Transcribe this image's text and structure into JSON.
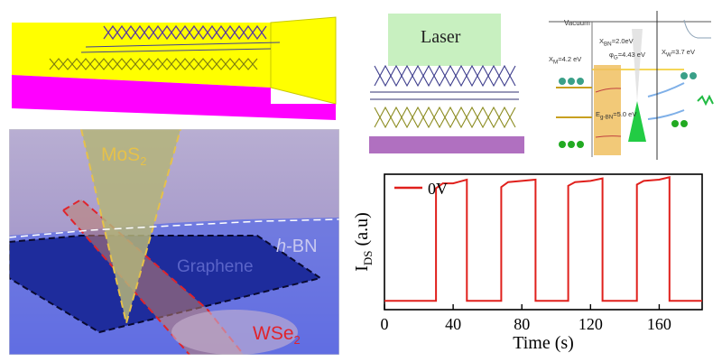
{
  "micrograph": {
    "labels": {
      "mos2": "MoS",
      "mos2_sub": "2",
      "hbn_italic": "h",
      "hbn_rest": "-BN",
      "graphene": "Graphene",
      "wse2": "WSe",
      "wse2_sub": "2"
    }
  },
  "schematic": {
    "laser_label": "Laser"
  },
  "band_diagram": {
    "vacuum": "Vacuum",
    "chi_m_main": "X",
    "chi_m_sub": "M",
    "chi_m_val": "=4.2 eV",
    "chi_bn_main": "X",
    "chi_bn_sub": "BN",
    "chi_bn_val": "=2.0eV",
    "phi_g_main": "φ",
    "phi_g_sub": "G",
    "phi_g_val": "=4.43 eV",
    "eg_main": "E",
    "eg_sub": "g-BN",
    "eg_val": "=5.0 eV",
    "chi_w_main": "X",
    "chi_w_sub": "W",
    "chi_w_val": "=3.7 eV"
  },
  "colors": {
    "mos2_outline": "#e6c14a",
    "wse2_outline": "#e0242c",
    "signal": "#e0201c",
    "substrate": "#ff00ff",
    "gold": "#ffff00"
  },
  "chart_data": {
    "type": "line",
    "xlabel": "Time (s)",
    "ylabel_main": "I",
    "ylabel_sub": "DS",
    "ylabel_rest": " (a.u)",
    "legend": "0V",
    "xlim": [
      0,
      185
    ],
    "ylim": [
      0,
      1
    ],
    "x_ticks": [
      0,
      40,
      80,
      120,
      160
    ],
    "series": [
      {
        "name": "0V",
        "points": [
          [
            0,
            0.02
          ],
          [
            30,
            0.02
          ],
          [
            30,
            0.93
          ],
          [
            34,
            0.97
          ],
          [
            40,
            0.97
          ],
          [
            48,
            1.0
          ],
          [
            48,
            0.02
          ],
          [
            68,
            0.02
          ],
          [
            68,
            0.94
          ],
          [
            72,
            0.98
          ],
          [
            80,
            0.99
          ],
          [
            88,
            1.0
          ],
          [
            88,
            0.02
          ],
          [
            107,
            0.02
          ],
          [
            107,
            0.95
          ],
          [
            111,
            0.98
          ],
          [
            120,
            0.99
          ],
          [
            127,
            1.01
          ],
          [
            127,
            0.02
          ],
          [
            147,
            0.02
          ],
          [
            147,
            0.96
          ],
          [
            151,
            0.99
          ],
          [
            160,
            1.0
          ],
          [
            166,
            1.02
          ],
          [
            166,
            0.02
          ],
          [
            185,
            0.02
          ]
        ]
      }
    ]
  }
}
